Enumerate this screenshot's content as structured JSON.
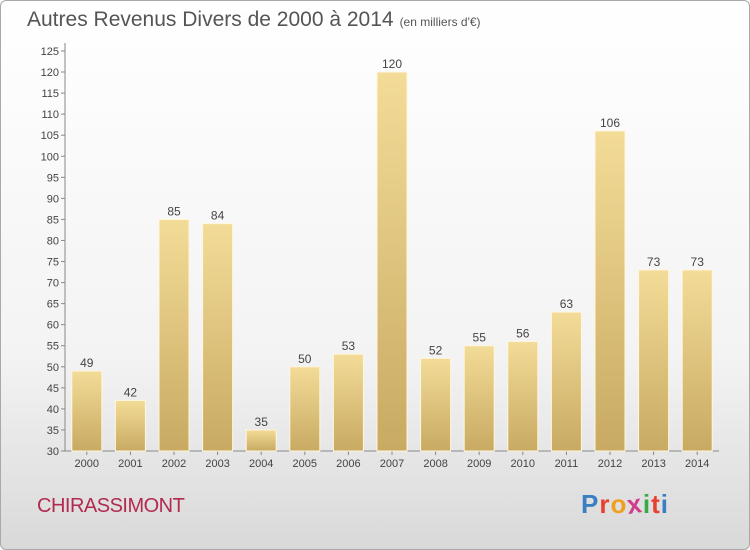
{
  "header": {
    "title": "Autres Revenus Divers de 2000 à 2014",
    "subtitle": "(en milliers d'€)"
  },
  "footer": {
    "town": "CHIRASSIMONT",
    "logo_letters": [
      "P",
      "r",
      "o",
      "x",
      "i",
      "t",
      "i"
    ],
    "logo_colors": [
      "#3a7fc1",
      "#e8402f",
      "#f0a020",
      "#d23c8c",
      "#39a845",
      "#e8402f",
      "#3a7fc1"
    ],
    "town_color": "#b22a4e"
  },
  "chart_data": {
    "type": "bar",
    "categories": [
      "2000",
      "2001",
      "2002",
      "2003",
      "2004",
      "2005",
      "2006",
      "2007",
      "2008",
      "2009",
      "2010",
      "2011",
      "2012",
      "2013",
      "2014"
    ],
    "values": [
      49,
      42,
      85,
      84,
      35,
      50,
      53,
      120,
      52,
      55,
      56,
      63,
      106,
      73,
      73
    ],
    "title": "Autres Revenus Divers de 2000 à 2014",
    "xlabel": "",
    "ylabel": "",
    "ylim": [
      30,
      125
    ],
    "ytick_step": 5,
    "grid": false,
    "bar_color": "#e2c77e"
  }
}
